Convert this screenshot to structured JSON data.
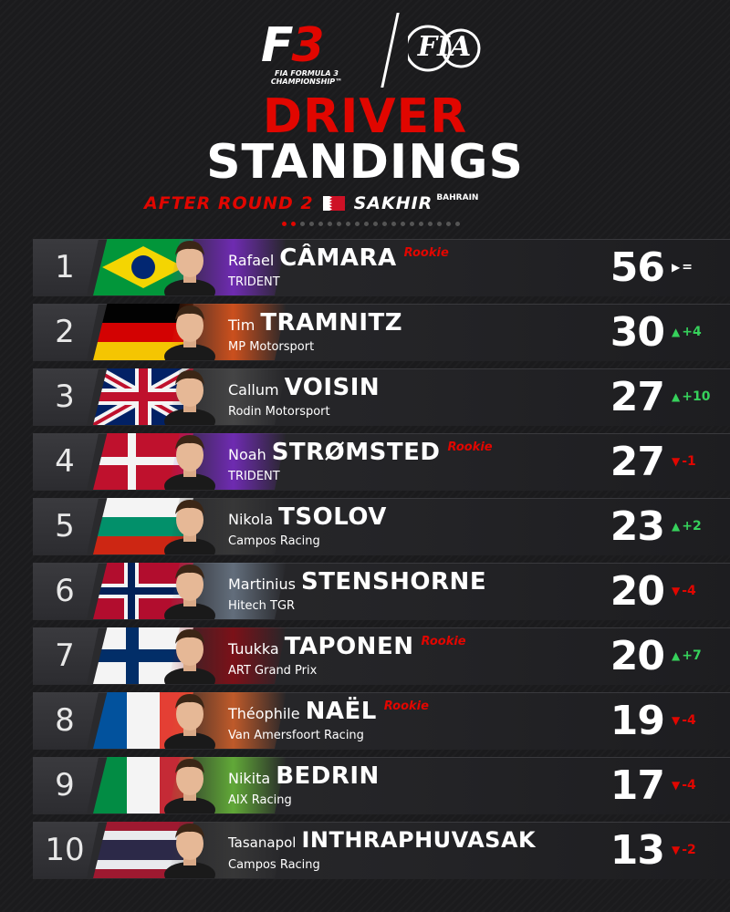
{
  "header": {
    "f3_logo_caption": "FIA FORMULA 3 CHAMPIONSHIP™",
    "title_line1": "DRIVER",
    "title_line2": "STANDINGS",
    "subtitle_after": "AFTER ROUND 2",
    "subtitle_location": "SAKHIR",
    "subtitle_country": "BAHRAIN",
    "round_dots": {
      "completed": 2,
      "total": 20
    }
  },
  "colors": {
    "accent": "#e10600",
    "up": "#36d15b",
    "down": "#e10600",
    "background": "#1b1b1d"
  },
  "standings": [
    {
      "pos": "1",
      "first": "Rafael",
      "last": "CÂMARA",
      "rookie": "Rookie",
      "team": "TRIDENT",
      "points": "56",
      "change": "=",
      "trend": "same",
      "flag": "brazil",
      "team_color": "#7b2cc9"
    },
    {
      "pos": "2",
      "first": "Tim",
      "last": "TRAMNITZ",
      "rookie": "",
      "team": "MP Motorsport",
      "points": "30",
      "change": "+4",
      "trend": "up",
      "flag": "germany",
      "team_color": "#e8571b"
    },
    {
      "pos": "3",
      "first": "Callum",
      "last": "VOISIN",
      "rookie": "",
      "team": "Rodin Motorsport",
      "points": "27",
      "change": "+10",
      "trend": "up",
      "flag": "uk",
      "team_color": "#4a4a4a"
    },
    {
      "pos": "4",
      "first": "Noah",
      "last": "STRØMSTED",
      "rookie": "Rookie",
      "team": "TRIDENT",
      "points": "27",
      "change": "-1",
      "trend": "down",
      "flag": "denmark",
      "team_color": "#7b2cc9"
    },
    {
      "pos": "5",
      "first": "Nikola",
      "last": "TSOLOV",
      "rookie": "",
      "team": "Campos Racing",
      "points": "23",
      "change": "+2",
      "trend": "up",
      "flag": "bulgaria",
      "team_color": "#3a3a3a"
    },
    {
      "pos": "6",
      "first": "Martinius",
      "last": "STENSHORNE",
      "rookie": "",
      "team": "Hitech TGR",
      "points": "20",
      "change": "-4",
      "trend": "down",
      "flag": "norway",
      "team_color": "#6d7a8a"
    },
    {
      "pos": "7",
      "first": "Tuukka",
      "last": "TAPONEN",
      "rookie": "Rookie",
      "team": "ART Grand Prix",
      "points": "20",
      "change": "+7",
      "trend": "up",
      "flag": "finland",
      "team_color": "#8a0d15"
    },
    {
      "pos": "8",
      "first": "Théophile",
      "last": "NAËL",
      "rookie": "Rookie",
      "team": "Van Amersfoort Racing",
      "points": "19",
      "change": "-4",
      "trend": "down",
      "flag": "france",
      "team_color": "#d9632a"
    },
    {
      "pos": "9",
      "first": "Nikita",
      "last": "BEDRIN",
      "rookie": "",
      "team": "AIX Racing",
      "points": "17",
      "change": "-4",
      "trend": "down",
      "flag": "italy",
      "team_color": "#6bbf3a"
    },
    {
      "pos": "10",
      "first": "Tasanapol",
      "last": "INTHRAPHUVASAK",
      "rookie": "",
      "team": "Campos Racing",
      "points": "13",
      "change": "-2",
      "trend": "down",
      "flag": "thailand",
      "team_color": "#3a3a3a"
    }
  ]
}
